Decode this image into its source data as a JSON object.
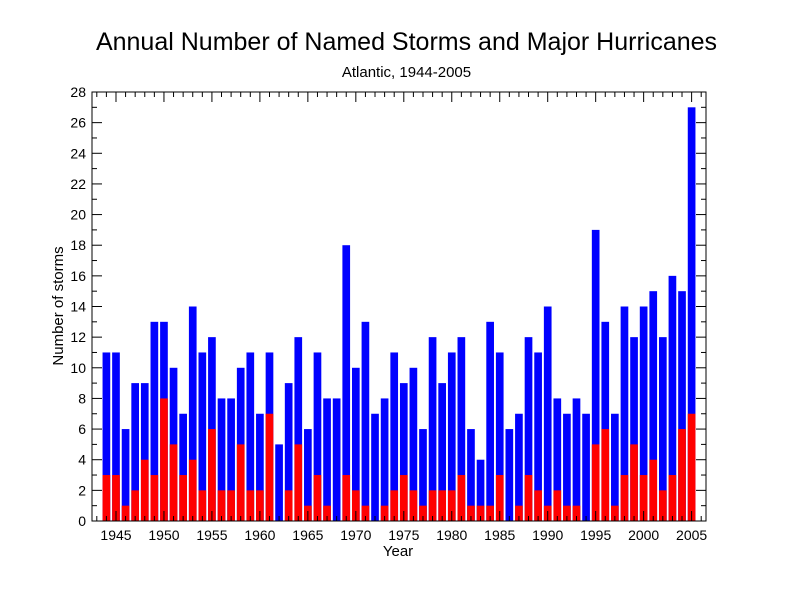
{
  "chart_data": {
    "type": "bar",
    "title": "Annual Number of Named Storms and Major Hurricanes",
    "subtitle": "Atlantic, 1944-2005",
    "xlabel": "Year",
    "ylabel": "Number of storms",
    "ylim": [
      0,
      28
    ],
    "xlim": [
      1942.5,
      2006.5
    ],
    "y_major_ticks": [
      0,
      2,
      4,
      6,
      8,
      10,
      12,
      14,
      16,
      18,
      20,
      22,
      24,
      26,
      28
    ],
    "x_tick_labels": [
      "1945",
      "1950",
      "1955",
      "1960",
      "1965",
      "1970",
      "1975",
      "1980",
      "1985",
      "1990",
      "1995",
      "2000",
      "2005"
    ],
    "grid": false,
    "layout": "overlaid",
    "categories": [
      "1944",
      "1945",
      "1946",
      "1947",
      "1948",
      "1949",
      "1950",
      "1951",
      "1952",
      "1953",
      "1954",
      "1955",
      "1956",
      "1957",
      "1958",
      "1959",
      "1960",
      "1961",
      "1962",
      "1963",
      "1964",
      "1965",
      "1966",
      "1967",
      "1968",
      "1969",
      "1970",
      "1971",
      "1972",
      "1973",
      "1974",
      "1975",
      "1976",
      "1977",
      "1978",
      "1979",
      "1980",
      "1981",
      "1982",
      "1983",
      "1984",
      "1985",
      "1986",
      "1987",
      "1988",
      "1989",
      "1990",
      "1991",
      "1992",
      "1993",
      "1994",
      "1995",
      "1996",
      "1997",
      "1998",
      "1999",
      "2000",
      "2001",
      "2002",
      "2003",
      "2004",
      "2005"
    ],
    "series": [
      {
        "color": "#0000ff",
        "values": [
          11,
          11,
          6,
          9,
          9,
          13,
          13,
          10,
          7,
          14,
          11,
          12,
          8,
          8,
          10,
          11,
          7,
          11,
          5,
          9,
          12,
          6,
          11,
          8,
          8,
          18,
          10,
          13,
          7,
          8,
          11,
          9,
          10,
          6,
          12,
          9,
          11,
          12,
          6,
          4,
          13,
          11,
          6,
          7,
          12,
          11,
          14,
          8,
          7,
          8,
          7,
          19,
          13,
          7,
          14,
          12,
          14,
          15,
          12,
          16,
          15,
          27
        ]
      },
      {
        "color": "#ff0000",
        "values": [
          3,
          3,
          1,
          2,
          4,
          3,
          8,
          5,
          3,
          4,
          2,
          6,
          2,
          2,
          5,
          2,
          2,
          7,
          0,
          2,
          5,
          1,
          3,
          1,
          0,
          3,
          2,
          1,
          0,
          1,
          2,
          3,
          2,
          1,
          2,
          2,
          2,
          3,
          1,
          1,
          1,
          3,
          0,
          1,
          3,
          2,
          1,
          2,
          1,
          1,
          0,
          5,
          6,
          1,
          3,
          5,
          3,
          4,
          2,
          3,
          6,
          7
        ]
      }
    ]
  }
}
